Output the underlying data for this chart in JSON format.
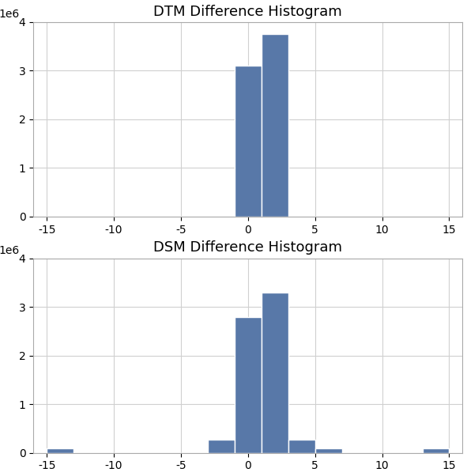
{
  "dtm_title": "DTM Difference Histogram",
  "dsm_title": "DSM Difference Histogram",
  "bin_edges": [
    -15,
    -13,
    -11,
    -9,
    -7,
    -5,
    -3,
    -1,
    1,
    3,
    5,
    7,
    9,
    11,
    13,
    15
  ],
  "dtm_counts": [
    0,
    0,
    0,
    0,
    0,
    0,
    0,
    3100000,
    3750000,
    0,
    0,
    0,
    0,
    0,
    0
  ],
  "dsm_counts": [
    100000,
    0,
    0,
    0,
    0,
    0,
    280000,
    2800000,
    3300000,
    280000,
    100000,
    0,
    0,
    0,
    100000
  ],
  "bar_color": "#5878a8",
  "bar_edgecolor": "#ffffff",
  "xlim": [
    -16,
    16
  ],
  "xticks": [
    -15,
    -10,
    -5,
    0,
    5,
    10,
    15
  ],
  "ylim": [
    0,
    4000000
  ],
  "yticks": [
    0,
    1000000,
    2000000,
    3000000,
    4000000
  ],
  "ytick_labels": [
    "0",
    "1",
    "2",
    "3",
    "4"
  ],
  "background_color": "#ffffff",
  "grid_color": "#d0d0d0",
  "title_fontsize": 13,
  "tick_fontsize": 10,
  "figsize": [
    5.91,
    6.02
  ],
  "dpi": 100
}
